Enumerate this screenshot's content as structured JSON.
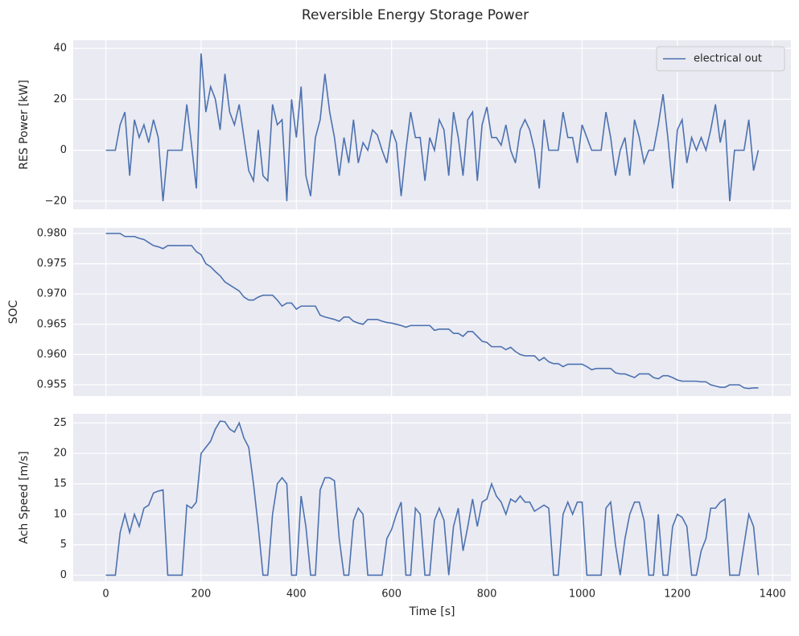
{
  "chart_data": [
    {
      "type": "line",
      "title": "Reversible Energy Storage Power",
      "ylabel": "RES Power [kW]",
      "legend": "upper right",
      "grid": true,
      "xlim": [
        -68.5,
        1438.5
      ],
      "ylim": [
        -23.2,
        43.2
      ],
      "yticks": [
        {
          "value": -20,
          "label": "−20"
        },
        0,
        20,
        40
      ],
      "x": [
        0,
        10,
        20,
        30,
        40,
        50,
        60,
        70,
        80,
        90,
        100,
        110,
        120,
        130,
        140,
        150,
        160,
        170,
        180,
        190,
        200,
        210,
        220,
        230,
        240,
        250,
        260,
        270,
        280,
        290,
        300,
        310,
        320,
        330,
        340,
        350,
        360,
        370,
        380,
        390,
        400,
        410,
        420,
        430,
        440,
        450,
        460,
        470,
        480,
        490,
        500,
        510,
        520,
        530,
        540,
        550,
        560,
        570,
        580,
        590,
        600,
        610,
        620,
        630,
        640,
        650,
        660,
        670,
        680,
        690,
        700,
        710,
        720,
        730,
        740,
        750,
        760,
        770,
        780,
        790,
        800,
        810,
        820,
        830,
        840,
        850,
        860,
        870,
        880,
        890,
        900,
        910,
        920,
        930,
        940,
        950,
        960,
        970,
        980,
        990,
        1000,
        1010,
        1020,
        1030,
        1040,
        1050,
        1060,
        1070,
        1080,
        1090,
        1100,
        1110,
        1120,
        1130,
        1140,
        1150,
        1160,
        1170,
        1180,
        1190,
        1200,
        1210,
        1220,
        1230,
        1240,
        1250,
        1260,
        1270,
        1280,
        1290,
        1300,
        1310,
        1320,
        1330,
        1340,
        1350,
        1360,
        1370
      ],
      "series": [
        {
          "name": "electrical out",
          "color": "#4c72b0",
          "values": [
            0,
            0,
            0,
            10,
            15,
            -10,
            12,
            5,
            10,
            3,
            12,
            5,
            -20,
            0,
            0,
            0,
            0,
            18,
            2,
            -15,
            38,
            15,
            25,
            20,
            8,
            30,
            15,
            10,
            18,
            5,
            -8,
            -12,
            8,
            -10,
            -12,
            18,
            10,
            12,
            -20,
            20,
            5,
            25,
            -10,
            -18,
            5,
            12,
            30,
            15,
            5,
            -10,
            5,
            -5,
            12,
            -5,
            3,
            0,
            8,
            6,
            0,
            -5,
            8,
            3,
            -18,
            0,
            15,
            5,
            5,
            -12,
            5,
            0,
            12,
            8,
            -10,
            15,
            5,
            -10,
            12,
            15,
            -12,
            10,
            17,
            5,
            5,
            2,
            10,
            0,
            -5,
            8,
            12,
            8,
            0,
            -15,
            12,
            0,
            0,
            0,
            15,
            5,
            5,
            -5,
            10,
            5,
            0,
            0,
            0,
            15,
            5,
            -10,
            0,
            5,
            -10,
            12,
            5,
            -5,
            0,
            0,
            10,
            22,
            5,
            -15,
            8,
            12,
            -5,
            5,
            0,
            5,
            0,
            8,
            18,
            3,
            12,
            -20,
            0,
            0,
            0,
            12,
            -8,
            0
          ]
        }
      ]
    },
    {
      "type": "line",
      "ylabel": "SOC",
      "grid": true,
      "xlim": [
        -68.5,
        1438.5
      ],
      "ylim": [
        0.95314,
        0.98093
      ],
      "yticks": [
        0.955,
        {
          "value": 0.96,
          "label": "0.960"
        },
        0.965,
        {
          "value": 0.97,
          "label": "0.970"
        },
        0.975,
        {
          "value": 0.98,
          "label": "0.980"
        }
      ],
      "x": [
        0,
        10,
        20,
        30,
        40,
        50,
        60,
        70,
        80,
        90,
        100,
        110,
        120,
        130,
        140,
        150,
        160,
        170,
        180,
        190,
        200,
        210,
        220,
        230,
        240,
        250,
        260,
        270,
        280,
        290,
        300,
        310,
        320,
        330,
        340,
        350,
        360,
        370,
        380,
        390,
        400,
        410,
        420,
        430,
        440,
        450,
        460,
        470,
        480,
        490,
        500,
        510,
        520,
        530,
        540,
        550,
        560,
        570,
        580,
        590,
        600,
        610,
        620,
        630,
        640,
        650,
        660,
        670,
        680,
        690,
        700,
        710,
        720,
        730,
        740,
        750,
        760,
        770,
        780,
        790,
        800,
        810,
        820,
        830,
        840,
        850,
        860,
        870,
        880,
        890,
        900,
        910,
        920,
        930,
        940,
        950,
        960,
        970,
        980,
        990,
        1000,
        1010,
        1020,
        1030,
        1040,
        1050,
        1060,
        1070,
        1080,
        1090,
        1100,
        1110,
        1120,
        1130,
        1140,
        1150,
        1160,
        1170,
        1180,
        1190,
        1200,
        1210,
        1220,
        1230,
        1240,
        1250,
        1260,
        1270,
        1280,
        1290,
        1300,
        1310,
        1320,
        1330,
        1340,
        1350,
        1360,
        1370
      ],
      "series": [
        {
          "color": "#4c72b0",
          "values": [
            0.98,
            0.98,
            0.98,
            0.98,
            0.9795,
            0.9795,
            0.9795,
            0.9792,
            0.979,
            0.9785,
            0.978,
            0.9778,
            0.9775,
            0.978,
            0.978,
            0.978,
            0.978,
            0.978,
            0.978,
            0.977,
            0.9765,
            0.975,
            0.9745,
            0.9737,
            0.973,
            0.972,
            0.9715,
            0.971,
            0.9705,
            0.9695,
            0.969,
            0.969,
            0.9695,
            0.9698,
            0.9698,
            0.9698,
            0.969,
            0.968,
            0.9685,
            0.9685,
            0.9675,
            0.968,
            0.968,
            0.968,
            0.968,
            0.9665,
            0.9662,
            0.966,
            0.9658,
            0.9655,
            0.9662,
            0.9662,
            0.9655,
            0.9652,
            0.965,
            0.9658,
            0.9658,
            0.9658,
            0.9655,
            0.9653,
            0.9652,
            0.965,
            0.9648,
            0.9645,
            0.9648,
            0.9648,
            0.9648,
            0.9648,
            0.9648,
            0.964,
            0.9642,
            0.9642,
            0.9642,
            0.9635,
            0.9635,
            0.963,
            0.9638,
            0.9638,
            0.963,
            0.9622,
            0.962,
            0.9613,
            0.9613,
            0.9613,
            0.9608,
            0.9612,
            0.9605,
            0.96,
            0.9598,
            0.9598,
            0.9598,
            0.959,
            0.9595,
            0.9588,
            0.9585,
            0.9585,
            0.958,
            0.9584,
            0.9584,
            0.9584,
            0.9584,
            0.958,
            0.9575,
            0.9577,
            0.9577,
            0.9577,
            0.9577,
            0.957,
            0.9568,
            0.9568,
            0.9565,
            0.9562,
            0.9568,
            0.9568,
            0.9568,
            0.9562,
            0.956,
            0.9565,
            0.9565,
            0.9562,
            0.9558,
            0.9556,
            0.9556,
            0.9556,
            0.9556,
            0.9555,
            0.9555,
            0.955,
            0.9548,
            0.9546,
            0.9546,
            0.955,
            0.955,
            0.955,
            0.9545,
            0.9544,
            0.9545,
            0.9545
          ]
        }
      ]
    },
    {
      "type": "line",
      "ylabel": "Ach Speed [m/s]",
      "xlabel": "Time [s]",
      "grid": true,
      "xlim": [
        -68.5,
        1438.5
      ],
      "ylim": [
        -1.0,
        26.5
      ],
      "xticks": [
        0,
        200,
        400,
        600,
        800,
        1000,
        1200,
        1400
      ],
      "yticks": [
        0,
        5,
        10,
        15,
        20,
        25
      ],
      "x": [
        0,
        10,
        20,
        30,
        40,
        50,
        60,
        70,
        80,
        90,
        100,
        110,
        120,
        130,
        140,
        150,
        160,
        170,
        180,
        190,
        200,
        210,
        220,
        230,
        240,
        250,
        260,
        270,
        280,
        290,
        300,
        310,
        320,
        330,
        340,
        350,
        360,
        370,
        380,
        390,
        400,
        410,
        420,
        430,
        440,
        450,
        460,
        470,
        480,
        490,
        500,
        510,
        520,
        530,
        540,
        550,
        560,
        570,
        580,
        590,
        600,
        610,
        620,
        630,
        640,
        650,
        660,
        670,
        680,
        690,
        700,
        710,
        720,
        730,
        740,
        750,
        760,
        770,
        780,
        790,
        800,
        810,
        820,
        830,
        840,
        850,
        860,
        870,
        880,
        890,
        900,
        910,
        920,
        930,
        940,
        950,
        960,
        970,
        980,
        990,
        1000,
        1010,
        1020,
        1030,
        1040,
        1050,
        1060,
        1070,
        1080,
        1090,
        1100,
        1110,
        1120,
        1130,
        1140,
        1150,
        1160,
        1170,
        1180,
        1190,
        1200,
        1210,
        1220,
        1230,
        1240,
        1250,
        1260,
        1270,
        1280,
        1290,
        1300,
        1310,
        1320,
        1330,
        1340,
        1350,
        1360,
        1370
      ],
      "series": [
        {
          "color": "#4c72b0",
          "values": [
            0,
            0,
            0,
            7,
            10,
            7,
            10,
            8,
            11,
            11.5,
            13.5,
            13.8,
            14,
            0,
            0,
            0,
            0,
            11.5,
            11,
            12,
            20,
            21,
            22,
            24,
            25.3,
            25.2,
            24,
            23.5,
            25,
            22.5,
            21,
            15,
            8,
            0,
            0,
            10,
            15,
            16,
            15,
            0,
            0,
            13,
            8,
            0,
            0,
            14,
            16,
            16,
            15.5,
            6,
            0,
            0,
            9,
            11,
            10,
            0,
            0,
            0,
            0,
            6,
            7.5,
            10,
            12,
            0,
            0,
            11,
            10,
            0,
            0,
            9,
            11,
            9,
            0,
            8,
            11,
            4,
            8,
            12.5,
            8,
            12,
            12.5,
            15,
            13,
            12,
            10,
            12.5,
            12,
            13,
            12,
            12,
            10.5,
            11,
            11.5,
            11,
            0,
            0,
            10,
            12,
            10,
            12,
            12,
            0,
            0,
            0,
            0,
            11,
            12,
            5,
            0,
            6,
            10,
            12,
            12,
            9,
            0,
            0,
            10,
            0,
            0,
            8,
            10,
            9.5,
            8,
            0,
            0,
            4,
            6,
            11,
            11,
            12,
            12.5,
            0,
            0,
            0,
            5,
            10,
            8,
            0
          ]
        }
      ]
    }
  ]
}
